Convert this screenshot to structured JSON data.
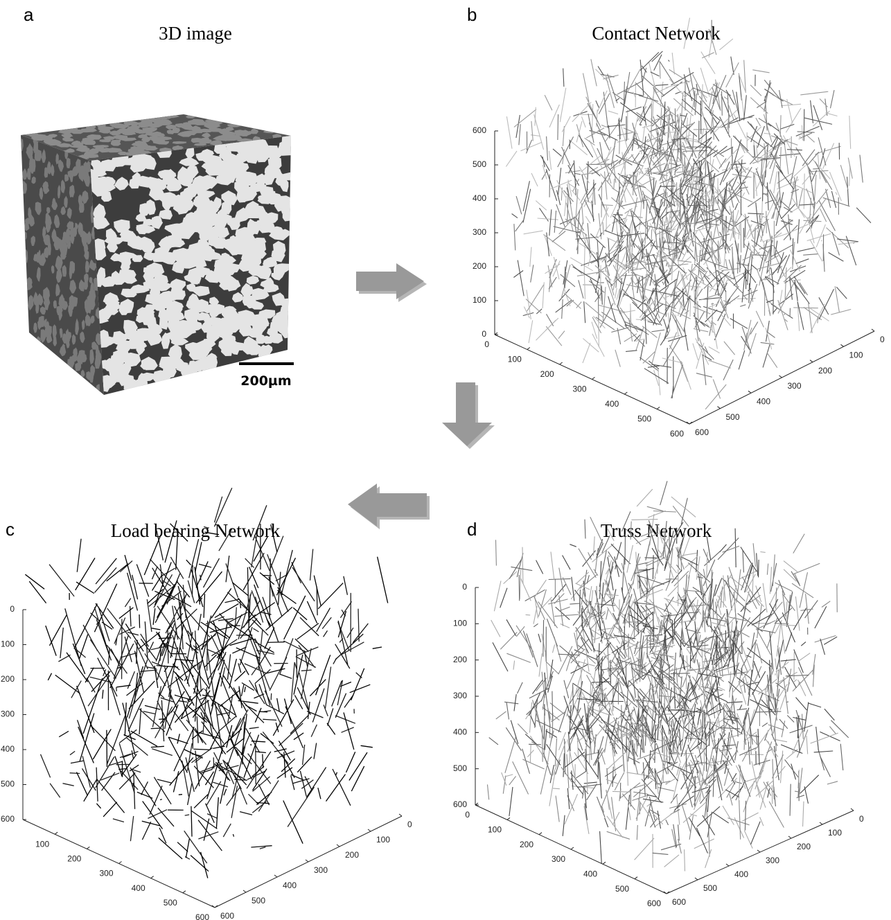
{
  "panels": [
    {
      "letter": "a",
      "title": "3D image",
      "scale_bar": "200µm"
    },
    {
      "letter": "b",
      "title": "Contact Network",
      "z_ticks": [
        0,
        100,
        200,
        300,
        400,
        500,
        600
      ],
      "x_ticks": [
        0,
        100,
        200,
        300,
        400,
        500,
        600
      ],
      "y_ticks": [
        0,
        100,
        200,
        300,
        400,
        500,
        600
      ]
    },
    {
      "letter": "c",
      "title": "Load bearing Network",
      "z_ticks": [
        0,
        100,
        200,
        300,
        400,
        500,
        600
      ],
      "x_ticks": [
        100,
        200,
        300,
        400,
        500,
        600
      ],
      "y_ticks": [
        0,
        100,
        200,
        300,
        400,
        500,
        600
      ]
    },
    {
      "letter": "d",
      "title": "Truss Network",
      "z_ticks": [
        0,
        100,
        200,
        300,
        400,
        500,
        600
      ],
      "x_ticks": [
        0,
        100,
        200,
        300,
        400,
        500,
        600
      ],
      "y_ticks": [
        0,
        100,
        200,
        300,
        400,
        500,
        600
      ]
    }
  ]
}
